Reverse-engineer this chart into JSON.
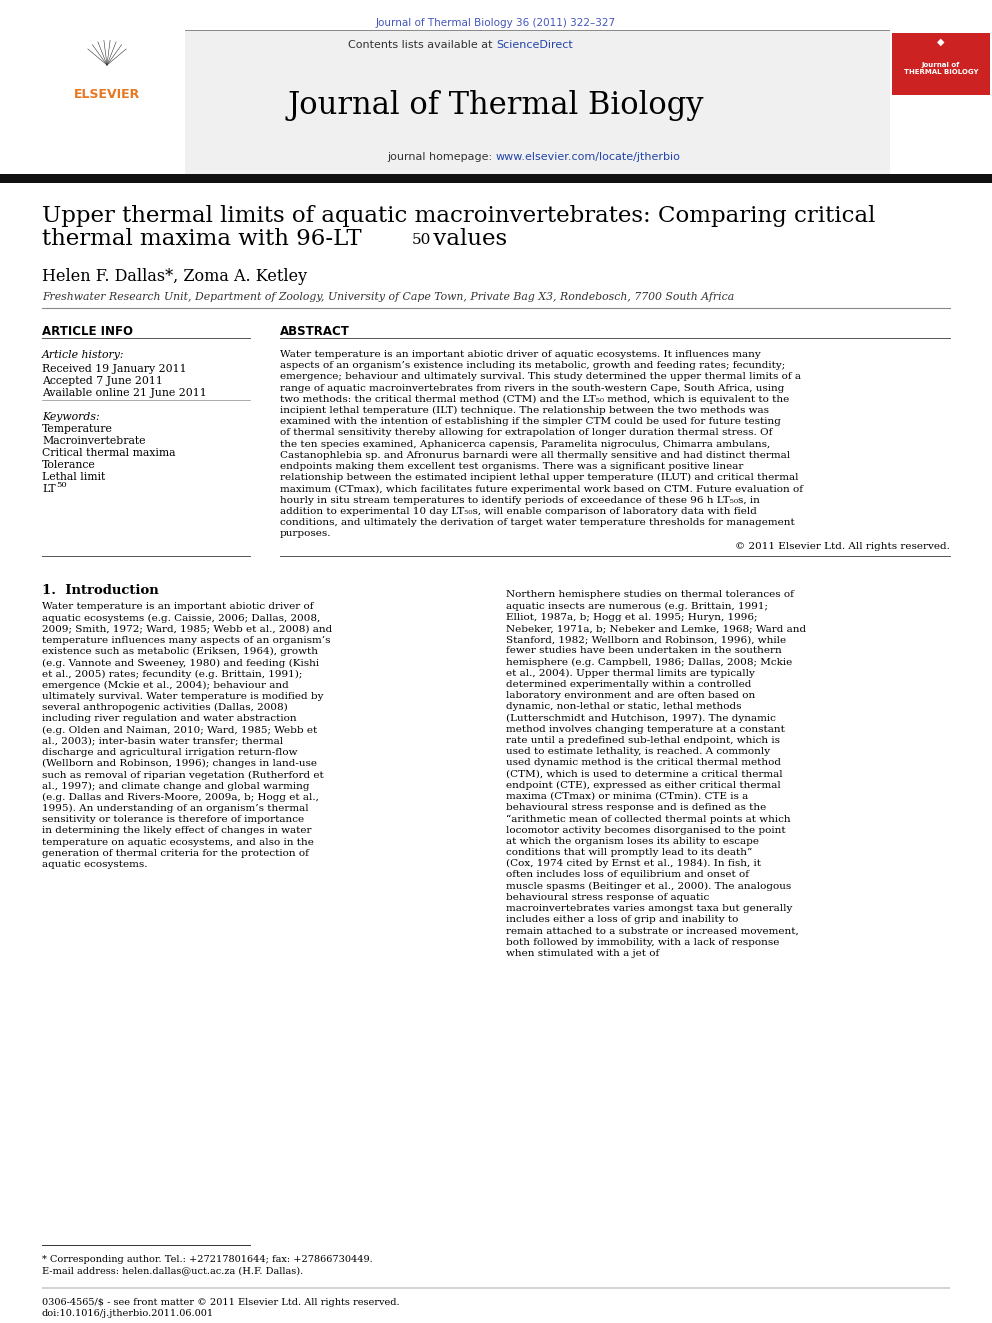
{
  "journal_citation": "Journal of Thermal Biology 36 (2011) 322–327",
  "journal_name": "Journal of Thermal Biology",
  "contents_line": "Contents lists available at ScienceDirect",
  "homepage_line": "journal homepage: www.elsevier.com/locate/jtherbio",
  "title_line1": "Upper thermal limits of aquatic macroinvertebrates: Comparing critical",
  "title_line2": "thermal maxima with 96-LT",
  "title_sub": "50",
  "title_line2_end": " values",
  "authors": "Helen F. Dallas*, Zoma A. Ketley",
  "affiliation": "Freshwater Research Unit, Department of Zoology, University of Cape Town, Private Bag X3, Rondebosch, 7700 South Africa",
  "section_article_info": "ARTICLE INFO",
  "section_abstract": "ABSTRACT",
  "article_history_label": "Article history:",
  "received": "Received 19 January 2011",
  "accepted": "Accepted 7 June 2011",
  "available": "Available online 21 June 2011",
  "keywords_label": "Keywords:",
  "keywords": [
    "Temperature",
    "Macroinvertebrate",
    "Critical thermal maxima",
    "Tolerance",
    "Lethal limit",
    "LT₅₀"
  ],
  "abstract_text": "Water temperature is an important abiotic driver of aquatic ecosystems. It influences many aspects of an organism’s existence including its metabolic, growth and feeding rates; fecundity; emergence; behaviour and ultimately survival. This study determined the upper thermal limits of a range of aquatic macroinvertebrates from rivers in the south-western Cape, South Africa, using two methods: the critical thermal method (CTM) and the LT₅₀ method, which is equivalent to the incipient lethal temperature (ILT) technique. The relationship between the two methods was examined with the intention of establishing if the simpler CTM could be used for future testing of thermal sensitivity thereby allowing for extrapolation of longer duration thermal stress. Of the ten species examined, Aphanicerca capensis, Paramelita nigroculus, Chimarra ambulans, Castanophlebia sp. and Afronurus barnardi were all thermally sensitive and had distinct thermal endpoints making them excellent test organisms. There was a significant positive linear relationship between the estimated incipient lethal upper temperature (ILUT) and critical thermal maximum (CTmax), which facilitates future experimental work based on CTM. Future evaluation of hourly in situ stream temperatures to identify periods of exceedance of these 96 h LT₅₀s, in addition to experimental 10 day LT₅₀s, will enable comparison of laboratory data with field conditions, and ultimately the derivation of target water temperature thresholds for management purposes.",
  "copyright": "© 2011 Elsevier Ltd. All rights reserved.",
  "intro_heading": "1.  Introduction",
  "intro_col1": "Water temperature is an important abiotic driver of aquatic ecosystems (e.g. Caissie, 2006; Dallas, 2008, 2009; Smith, 1972; Ward, 1985; Webb et al., 2008) and temperature influences many aspects of an organism’s existence such as metabolic (Eriksen, 1964), growth (e.g. Vannote and Sweeney, 1980) and feeding (Kishi et al., 2005) rates; fecundity (e.g. Brittain, 1991); emergence (Mckie et al., 2004); behaviour and ultimately survival. Water temperature is modified by several anthropogenic activities (Dallas, 2008) including river regulation and water abstraction (e.g. Olden and Naiman, 2010; Ward, 1985; Webb et al., 2003); inter-basin water transfer; thermal discharge and agricultural irrigation return-flow (Wellborn and Robinson, 1996); changes in land-use such as removal of riparian vegetation (Rutherford et al., 1997); and climate change and global warming (e.g. Dallas and Rivers-Moore, 2009a, b; Hogg et al., 1995). An understanding of an organism’s thermal sensitivity or tolerance is therefore of importance in determining the likely effect of changes in water temperature on aquatic ecosystems, and also in the generation of thermal criteria for the protection of aquatic ecosystems.",
  "intro_col2": "Northern hemisphere studies on thermal tolerances of aquatic insects are numerous (e.g. Brittain, 1991; Elliot, 1987a, b; Hogg et al. 1995; Huryn, 1996; Nebeker, 1971a, b; Nebeker and Lemke, 1968; Ward and Stanford, 1982; Wellborn and Robinson, 1996), while fewer studies have been undertaken in the southern hemisphere (e.g. Campbell, 1986; Dallas, 2008; Mckie et al., 2004). Upper thermal limits are typically determined experimentally within a controlled laboratory environment and are often based on dynamic, non-lethal or static, lethal methods (Lutterschmidt and Hutchison, 1997). The dynamic method involves changing temperature at a constant rate until a predefined sub-lethal endpoint, which is used to estimate lethality, is reached. A commonly used dynamic method is the critical thermal method (CTM), which is used to determine a critical thermal endpoint (CTE), expressed as either critical thermal maxima (CTmax) or minima (CTmin). CTE is a behavioural stress response and is defined as the “arithmetic mean of collected thermal points at which locomotor activity becomes disorganised to the point at which the organism loses its ability to escape conditions that will promptly lead to its death” (Cox, 1974 cited by Ernst et al., 1984). In fish, it often includes loss of equilibrium and onset of muscle spasms (Beitinger et al., 2000). The analogous behavioural stress response of aquatic macroinvertebrates varies amongst taxa but generally includes either a loss of grip and inability to remain attached to a substrate or increased movement, both followed by immobility, with a lack of response when stimulated with a jet of",
  "footnote": "* Corresponding author. Tel.: +27217801644; fax: +27866730449.",
  "email_footnote": "E-mail address: helen.dallas@uct.ac.za (H.F. Dallas).",
  "footer_line1": "0306-4565/$ - see front matter © 2011 Elsevier Ltd. All rights reserved.",
  "footer_line2": "doi:10.1016/j.jtherbio.2011.06.001",
  "bg_header_color": "#f0f0f0",
  "link_color": "#2244aa",
  "journal_citation_color": "#4455bb",
  "title_color": "#000000",
  "header_bar_color": "#222222",
  "elsevier_orange": "#e87722"
}
